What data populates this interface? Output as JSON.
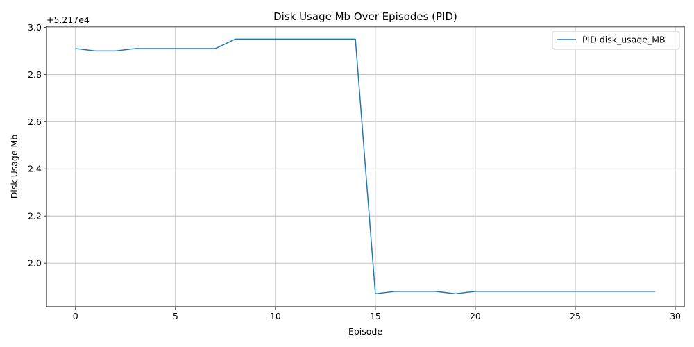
{
  "chart_data": {
    "type": "line",
    "title": "Disk Usage Mb Over Episodes (PID)",
    "xlabel": "Episode",
    "ylabel": "Disk Usage Mb",
    "offset_label": "+5.217e4",
    "xlim": [
      -1.45,
      30.45
    ],
    "ylim": [
      1.815,
      3.004
    ],
    "xticks": [
      0,
      5,
      10,
      15,
      20,
      25,
      30
    ],
    "xtick_labels": [
      "0",
      "5",
      "10",
      "15",
      "20",
      "25",
      "30"
    ],
    "yticks": [
      2.0,
      2.2,
      2.4,
      2.6,
      2.8,
      3.0
    ],
    "ytick_labels": [
      "2.0",
      "2.2",
      "2.4",
      "2.6",
      "2.8",
      "3.0"
    ],
    "grid": true,
    "legend_position": "top-right",
    "series": [
      {
        "name": "PID disk_usage_MB",
        "color": "#1f77b4",
        "x": [
          0,
          1,
          2,
          3,
          4,
          5,
          6,
          7,
          8,
          9,
          10,
          11,
          12,
          13,
          14,
          15,
          16,
          17,
          18,
          19,
          20,
          21,
          22,
          23,
          24,
          25,
          26,
          27,
          28,
          29
        ],
        "y": [
          2.91,
          2.9,
          2.9,
          2.91,
          2.91,
          2.91,
          2.91,
          2.91,
          2.95,
          2.95,
          2.95,
          2.95,
          2.95,
          2.95,
          2.95,
          1.87,
          1.88,
          1.88,
          1.88,
          1.87,
          1.88,
          1.88,
          1.88,
          1.88,
          1.88,
          1.88,
          1.88,
          1.88,
          1.88,
          1.88
        ]
      }
    ]
  }
}
